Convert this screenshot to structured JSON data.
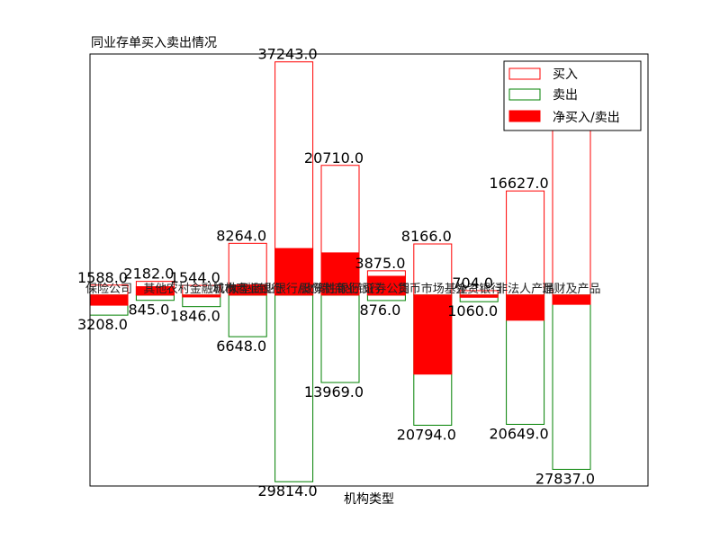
{
  "chart_data": {
    "type": "bar",
    "title": "同业存单买入卖出情况",
    "xlabel": "机构类型",
    "ylabel": "",
    "ylim": [
      -30500,
      38500
    ],
    "grid": false,
    "legend_position": "top-right",
    "categories": [
      "保险公司",
      "其他",
      "农村金融机构",
      "城市商业银行",
      "大型商业银行/政策性银行",
      "股份制商业银行",
      "证券公司",
      "货币市场基金",
      "外资银行",
      "非法人产品",
      "理财及产品"
    ],
    "series": [
      {
        "name": "买入",
        "values": [
          1588.0,
          2182.0,
          1544.0,
          8264.0,
          37243.0,
          20710.0,
          3875.0,
          8166.0,
          704.0,
          16627.0,
          26353.0
        ],
        "color": "#ff0000",
        "labels": [
          "1588.0",
          "2182.0",
          "1544.0",
          "8264.0",
          "37243.0",
          "20710.0",
          "3875.0",
          "8166.0",
          "704.0",
          "16627.0",
          "26353.0"
        ]
      },
      {
        "name": "卖出",
        "values": [
          -3208.0,
          -845.0,
          -1846.0,
          -6648.0,
          -29814.0,
          -13969.0,
          -876.0,
          -20794.0,
          -1060.0,
          -20649.0,
          -27837.0
        ],
        "color": "#008000",
        "labels": [
          "3208.0",
          "845.0",
          "1846.0",
          "6648.0",
          "29814.0",
          "13969.0",
          "876.0",
          "20794.0",
          "1060.0",
          "20649.0",
          "27837.0"
        ]
      },
      {
        "name": "净买入/卖出",
        "values": [
          -1620.0,
          1337.0,
          -302.0,
          1616.0,
          7429.0,
          6741.0,
          2999.0,
          -12628.0,
          -356.0,
          -4022.0,
          -1484.0
        ],
        "color": "#ff0000"
      }
    ]
  }
}
